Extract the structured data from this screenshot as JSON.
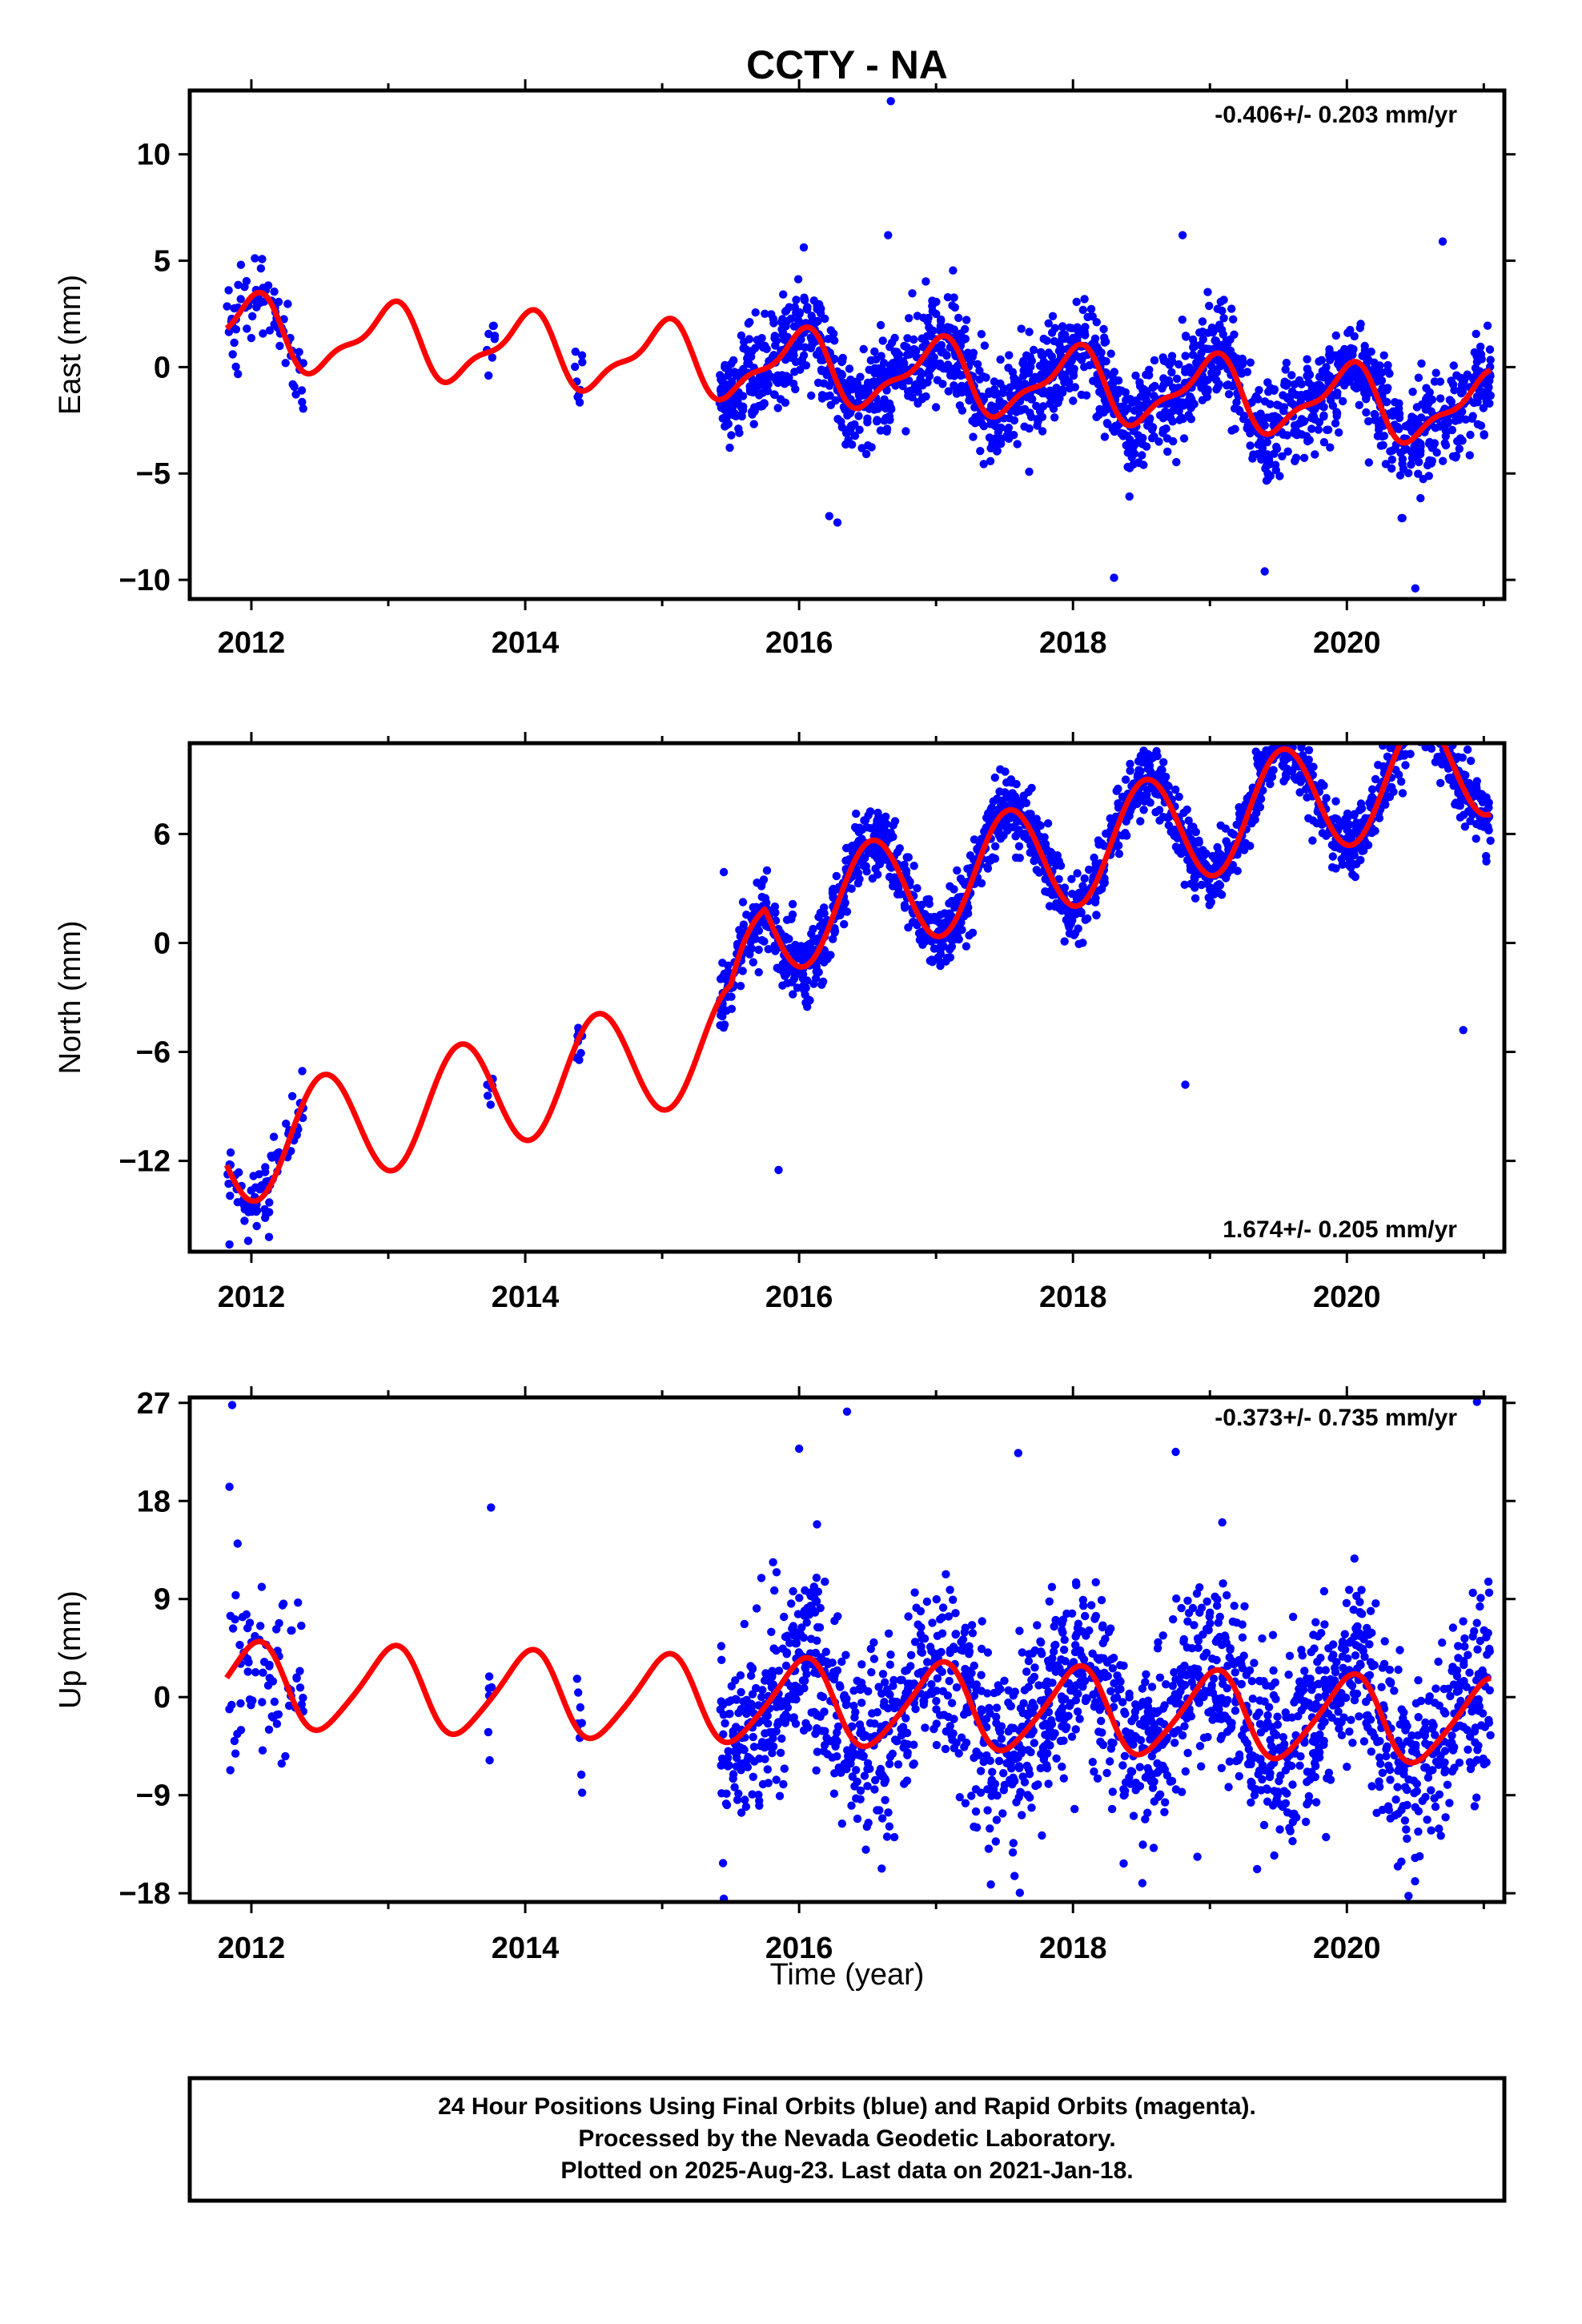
{
  "title": "CCTY - NA",
  "xlabel": "Time (year)",
  "footer": {
    "line1": "24 Hour Positions Using Final Orbits (blue) and Rapid Orbits (magenta).",
    "line2": "Processed by the Nevada Geodetic Laboratory.",
    "line3": "Plotted on 2025-Aug-23. Last data on 2021-Jan-18."
  },
  "colors": {
    "data": "#0000ff",
    "model": "#ff0000",
    "axes": "#000000"
  },
  "chart_data": [
    {
      "type": "scatter",
      "component": "east",
      "ylabel": "East (mm)",
      "rate_label": "-0.406+/- 0.203 mm/yr",
      "xlim": [
        2011.55,
        2021.15
      ],
      "ylim": [
        -10.9,
        13.0
      ],
      "x_ticks": [
        2012,
        2014,
        2016,
        2018,
        2020
      ],
      "y_ticks": [
        -10,
        -5,
        0,
        5,
        10
      ],
      "y_tick_labels": [
        "−10",
        "−5",
        "0",
        "5",
        "10"
      ],
      "grid": false,
      "trend_mm_per_yr": -0.406,
      "seasonal": {
        "intercept_2012": 1.6,
        "cos": 1.55,
        "sin": 0.0,
        "cos2": 0.15,
        "sin2": 0.55
      },
      "segments": [
        {
          "x": [
            2011.82,
            2012.38
          ],
          "n": 70,
          "noise": 1.1
        },
        {
          "x": [
            2013.72,
            2013.78
          ],
          "n": 8,
          "noise": 0.8
        },
        {
          "x": [
            2014.36,
            2014.42
          ],
          "n": 9,
          "noise": 1.0
        },
        {
          "x": [
            2015.42,
            2021.05
          ],
          "n": 1900,
          "noise": 1.15
        }
      ],
      "outliers": [
        {
          "x": 2016.67,
          "y": 12.5
        },
        {
          "x": 2016.65,
          "y": 6.2
        },
        {
          "x": 2018.3,
          "y": -9.9
        },
        {
          "x": 2019.4,
          "y": -9.6
        },
        {
          "x": 2020.5,
          "y": -10.4
        },
        {
          "x": 2020.7,
          "y": 5.9
        },
        {
          "x": 2016.28,
          "y": -7.3
        },
        {
          "x": 2016.22,
          "y": -7.0
        },
        {
          "x": 2018.8,
          "y": 6.2
        },
        {
          "x": 2020.4,
          "y": -7.1
        }
      ]
    },
    {
      "type": "scatter",
      "component": "north",
      "ylabel": "North (mm)",
      "rate_label": "1.674+/- 0.205 mm/yr",
      "xlim": [
        2011.55,
        2021.15
      ],
      "ylim": [
        -17.0,
        11.0
      ],
      "x_ticks": [
        2012,
        2014,
        2016,
        2018,
        2020
      ],
      "y_ticks": [
        -12,
        -6,
        0,
        6
      ],
      "y_tick_labels": [
        "−12",
        "−6",
        "0",
        "6"
      ],
      "grid": false,
      "trend_mm_per_yr": 1.674,
      "seasonal": {
        "intercept_2012": -11.2,
        "cos": -3.0,
        "sin": -0.6,
        "cos2": 0.0,
        "sin2": 0.0,
        "step_2015_5": 6.2
      },
      "segments": [
        {
          "x": [
            2011.82,
            2012.38
          ],
          "n": 80,
          "noise": 0.9
        },
        {
          "x": [
            2013.72,
            2013.78
          ],
          "n": 6,
          "noise": 0.6
        },
        {
          "x": [
            2014.36,
            2014.42
          ],
          "n": 8,
          "noise": 0.7
        },
        {
          "x": [
            2015.42,
            2021.05
          ],
          "n": 1900,
          "noise": 0.95
        }
      ],
      "outliers": [
        {
          "x": 2011.84,
          "y": -16.6
        },
        {
          "x": 2011.95,
          "y": -15.3
        },
        {
          "x": 2015.85,
          "y": -12.5
        },
        {
          "x": 2018.82,
          "y": -7.8
        },
        {
          "x": 2020.85,
          "y": -4.8
        },
        {
          "x": 2015.45,
          "y": 3.9
        }
      ]
    },
    {
      "type": "scatter",
      "component": "up",
      "ylabel": "Up (mm)",
      "rate_label": "-0.373+/- 0.735 mm/yr",
      "xlim": [
        2011.55,
        2021.15
      ],
      "ylim": [
        -18.8,
        27.5
      ],
      "x_ticks": [
        2012,
        2014,
        2016,
        2018,
        2020
      ],
      "y_ticks": [
        -18,
        -9,
        0,
        9,
        18,
        27
      ],
      "y_tick_labels": [
        "−18",
        "−9",
        "0",
        "9",
        "18",
        "27"
      ],
      "grid": false,
      "trend_mm_per_yr": -0.373,
      "seasonal": {
        "intercept_2012": 1.0,
        "cos": 3.8,
        "sin": 0.5,
        "cos2": 0.0,
        "sin2": 0.6
      },
      "segments": [
        {
          "x": [
            2011.82,
            2012.38
          ],
          "n": 75,
          "noise": 4.5
        },
        {
          "x": [
            2013.72,
            2013.78
          ],
          "n": 6,
          "noise": 3.5
        },
        {
          "x": [
            2014.36,
            2014.42
          ],
          "n": 9,
          "noise": 3.5
        },
        {
          "x": [
            2015.42,
            2021.05
          ],
          "n": 1900,
          "noise": 4.3
        }
      ],
      "outliers": [
        {
          "x": 2011.86,
          "y": 26.8
        },
        {
          "x": 2011.84,
          "y": 19.3
        },
        {
          "x": 2016.35,
          "y": 26.2
        },
        {
          "x": 2015.45,
          "y": -18.5
        },
        {
          "x": 2020.95,
          "y": 27.1
        },
        {
          "x": 2018.75,
          "y": 22.5
        },
        {
          "x": 2017.6,
          "y": 22.4
        },
        {
          "x": 2016.0,
          "y": 22.8
        },
        {
          "x": 2013.75,
          "y": 17.4
        },
        {
          "x": 2017.4,
          "y": -17.2
        }
      ]
    }
  ]
}
